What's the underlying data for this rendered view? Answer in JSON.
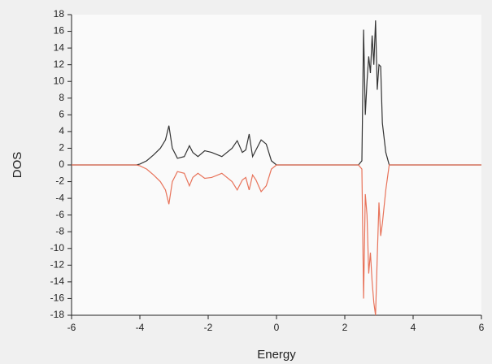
{
  "chart_data": {
    "type": "line",
    "x_label": "Energy",
    "y_label": "DOS",
    "x": [
      -6,
      -4.1,
      -4,
      -3.8,
      -3.6,
      -3.4,
      -3.25,
      -3.15,
      -3.05,
      -2.9,
      -2.7,
      -2.55,
      -2.45,
      -2.3,
      -2.1,
      -1.9,
      -1.6,
      -1.3,
      -1.15,
      -1,
      -0.9,
      -0.8,
      -0.7,
      -0.6,
      -0.45,
      -0.3,
      -0.15,
      0,
      2.4,
      2.5,
      2.55,
      2.6,
      2.65,
      2.7,
      2.75,
      2.8,
      2.85,
      2.9,
      2.95,
      3,
      3.05,
      3.1,
      3.2,
      3.3,
      6
    ],
    "series": [
      {
        "color": "#333333",
        "values": [
          0,
          0,
          0.1,
          0.5,
          1.2,
          2,
          3,
          4.7,
          2,
          0.8,
          1,
          2.3,
          1.5,
          1,
          1.7,
          1.5,
          1,
          2,
          2.9,
          1.5,
          1.8,
          3.7,
          1,
          1.8,
          3,
          2.5,
          0.5,
          0,
          0,
          0.5,
          16.2,
          6,
          10,
          13,
          11,
          15.5,
          12,
          17.3,
          9,
          12,
          11.8,
          5,
          1.5,
          0,
          0
        ]
      },
      {
        "color": "#e8735a",
        "values": [
          0,
          0,
          -0.1,
          -0.5,
          -1.2,
          -2,
          -3,
          -4.7,
          -2,
          -0.8,
          -1,
          -2.5,
          -1.5,
          -1,
          -1.6,
          -1.5,
          -1,
          -2,
          -3,
          -1.8,
          -1.5,
          -3,
          -1.2,
          -1.8,
          -3.2,
          -2.5,
          -0.5,
          0,
          0,
          -0.5,
          -16,
          -3.5,
          -6,
          -13,
          -10.5,
          -14,
          -16.5,
          -18,
          -11,
          -4.5,
          -8.5,
          -7,
          -3,
          0,
          0
        ]
      }
    ],
    "xlim": [
      -6,
      6
    ],
    "xticks": [
      -6,
      -4,
      -2,
      0,
      2,
      4,
      6
    ],
    "ylim": [
      -18,
      18
    ],
    "yticks": [
      -18,
      -16,
      -14,
      -12,
      -10,
      -8,
      -6,
      -4,
      -2,
      0,
      2,
      4,
      6,
      8,
      10,
      12,
      14,
      16,
      18
    ]
  }
}
